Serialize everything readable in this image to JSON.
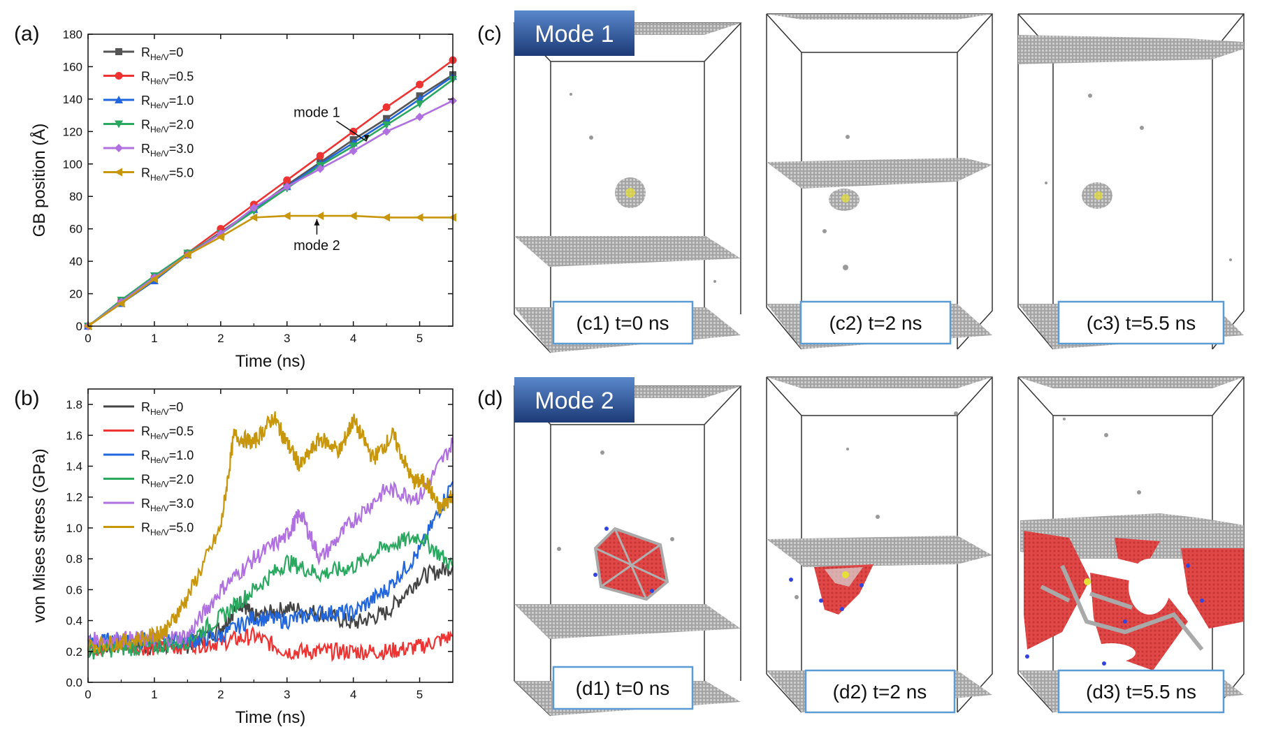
{
  "panel_labels": {
    "a": "(a)",
    "b": "(b)",
    "c": "(c)",
    "d": "(d)"
  },
  "chart_data": [
    {
      "type": "line",
      "id": "a",
      "xlabel": "Time (ns)",
      "ylabel": "GB position (Å)",
      "xlim": [
        0,
        5.5
      ],
      "ylim": [
        0,
        180
      ],
      "xticks": [
        0,
        1,
        2,
        3,
        4,
        5
      ],
      "yticks": [
        0,
        20,
        40,
        60,
        80,
        100,
        120,
        140,
        160,
        180
      ],
      "legend_position": "top-left",
      "x": [
        0,
        0.5,
        1,
        1.5,
        2,
        2.5,
        3,
        3.5,
        4,
        4.5,
        5,
        5.5
      ],
      "series": [
        {
          "label_main": "R",
          "label_sub": "He/V",
          "label_tail": "=0",
          "color": "#555555",
          "marker": "square",
          "values": [
            0,
            15,
            29,
            44,
            58,
            72,
            87,
            101,
            115,
            128,
            142,
            155
          ]
        },
        {
          "label_main": "R",
          "label_sub": "He/V",
          "label_tail": "=0.5",
          "color": "#ee3333",
          "marker": "circle",
          "values": [
            0,
            15,
            30,
            45,
            60,
            75,
            90,
            105,
            120,
            135,
            149,
            164
          ]
        },
        {
          "label_main": "R",
          "label_sub": "He/V",
          "label_tail": "=1.0",
          "color": "#2266dd",
          "marker": "triangle-up",
          "values": [
            0,
            14,
            28,
            44,
            57,
            72,
            86,
            100,
            113,
            126,
            140,
            154
          ]
        },
        {
          "label_main": "R",
          "label_sub": "He/V",
          "label_tail": "=2.0",
          "color": "#2aa860",
          "marker": "triangle-down",
          "values": [
            0,
            16,
            31,
            45,
            57,
            71,
            85,
            99,
            111,
            124,
            137,
            152
          ]
        },
        {
          "label_main": "R",
          "label_sub": "He/V",
          "label_tail": "=3.0",
          "color": "#b070e0",
          "marker": "diamond",
          "values": [
            0,
            15,
            30,
            44,
            57,
            73,
            86,
            97,
            108,
            120,
            129,
            139
          ]
        },
        {
          "label_main": "R",
          "label_sub": "He/V",
          "label_tail": "=5.0",
          "color": "#c8960a",
          "marker": "triangle-left",
          "values": [
            0,
            14,
            29,
            44,
            55,
            67,
            68,
            68,
            68,
            67,
            67,
            67
          ]
        }
      ],
      "annotations": [
        {
          "text": "mode 1",
          "target": [
            4.2,
            114
          ],
          "text_at": [
            3.45,
            129
          ]
        },
        {
          "text": "mode 2",
          "target": [
            3.35,
            66
          ],
          "text_at": [
            3.45,
            47
          ]
        }
      ]
    },
    {
      "type": "line",
      "id": "b",
      "xlabel": "Time (ns)",
      "ylabel": "von Mises stress (GPa)",
      "xlim": [
        0,
        5.5
      ],
      "ylim": [
        0,
        1.9
      ],
      "xticks": [
        0,
        1,
        2,
        3,
        4,
        5
      ],
      "yticks": [
        0.0,
        0.2,
        0.4,
        0.6,
        0.8,
        1.0,
        1.2,
        1.4,
        1.6,
        1.8
      ],
      "legend_position": "top-left",
      "series": [
        {
          "label_main": "R",
          "label_sub": "He/V",
          "label_tail": "=0",
          "color": "#444444",
          "x": [
            0,
            0.5,
            1,
            1.5,
            2,
            2.3,
            2.5,
            3,
            3.5,
            4,
            4.5,
            5,
            5.5
          ],
          "values": [
            0.22,
            0.24,
            0.23,
            0.24,
            0.35,
            0.52,
            0.42,
            0.48,
            0.45,
            0.38,
            0.45,
            0.68,
            0.75
          ]
        },
        {
          "label_main": "R",
          "label_sub": "He/V",
          "label_tail": "=0.5",
          "color": "#ee3333",
          "x": [
            0,
            0.5,
            1,
            1.5,
            2,
            2.5,
            3,
            3.5,
            4,
            4.5,
            5,
            5.5
          ],
          "values": [
            0.22,
            0.24,
            0.22,
            0.24,
            0.26,
            0.3,
            0.2,
            0.2,
            0.2,
            0.2,
            0.23,
            0.3
          ]
        },
        {
          "label_main": "R",
          "label_sub": "He/V",
          "label_tail": "=1.0",
          "color": "#2266dd",
          "x": [
            0,
            0.5,
            1,
            1.5,
            2,
            2.5,
            3,
            3.5,
            4,
            4.5,
            5,
            5.5
          ],
          "values": [
            0.25,
            0.28,
            0.27,
            0.27,
            0.3,
            0.42,
            0.4,
            0.45,
            0.45,
            0.6,
            0.85,
            1.3
          ]
        },
        {
          "label_main": "R",
          "label_sub": "He/V",
          "label_tail": "=2.0",
          "color": "#2aa860",
          "x": [
            0,
            0.5,
            1,
            1.5,
            2,
            2.5,
            3,
            3.5,
            4,
            4.5,
            5,
            5.5
          ],
          "values": [
            0.2,
            0.22,
            0.23,
            0.27,
            0.42,
            0.6,
            0.78,
            0.7,
            0.75,
            0.88,
            0.95,
            0.75
          ]
        },
        {
          "label_main": "R",
          "label_sub": "He/V",
          "label_tail": "=3.0",
          "color": "#b070e0",
          "x": [
            0,
            0.5,
            1,
            1.5,
            2,
            2.5,
            3,
            3.2,
            3.5,
            4,
            4.5,
            5,
            5.5
          ],
          "values": [
            0.27,
            0.28,
            0.28,
            0.3,
            0.6,
            0.8,
            0.95,
            1.1,
            0.8,
            1.05,
            1.25,
            1.2,
            1.55
          ]
        },
        {
          "label_main": "R",
          "label_sub": "He/V",
          "label_tail": "=5.0",
          "color": "#c8960a",
          "x": [
            0,
            0.5,
            1,
            1.2,
            1.5,
            2,
            2.2,
            2.5,
            2.8,
            3,
            3.2,
            3.5,
            3.8,
            4,
            4.3,
            4.6,
            4.9,
            5.1,
            5.3,
            5.5
          ],
          "values": [
            0.24,
            0.26,
            0.3,
            0.35,
            0.55,
            1.0,
            1.6,
            1.55,
            1.72,
            1.55,
            1.4,
            1.58,
            1.5,
            1.7,
            1.45,
            1.6,
            1.3,
            1.3,
            1.12,
            1.22
          ]
        }
      ]
    }
  ],
  "snapshots": {
    "mode1": {
      "title": "Mode 1",
      "captions": [
        "(c1) t=0 ns",
        "(c2) t=2 ns",
        "(c3) t=5.5 ns"
      ]
    },
    "mode2": {
      "title": "Mode 2",
      "captions": [
        "(d1) t=0 ns",
        "(d2) t=2 ns",
        "(d3) t=5.5 ns"
      ]
    },
    "colors": {
      "atom_gray": "#a9a9a9",
      "fcc_red": "#e04444",
      "defect_blue": "#3344dd",
      "helium_yellow": "#e5e033",
      "caption_border": "#5b9bd5",
      "mode_box_top": "#4a7cc4",
      "mode_box_bottom": "#1f3c78"
    }
  }
}
